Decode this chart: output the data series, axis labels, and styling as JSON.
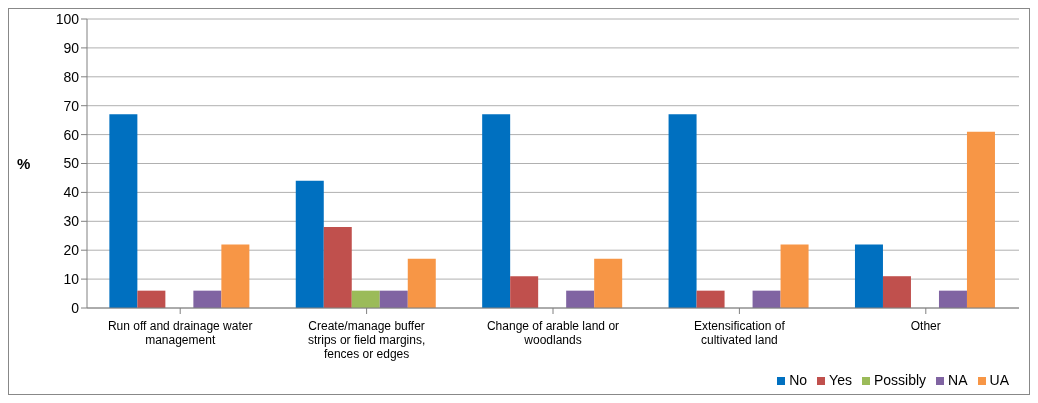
{
  "chart_data": {
    "type": "bar",
    "ylabel": "%",
    "categories": [
      "Run off and drainage water management",
      "Create/manage buffer strips or field margins, fences or edges",
      "Change of arable land or woodlands",
      "Extensification of cultivated land",
      "Other"
    ],
    "series": [
      {
        "name": "No",
        "color": "#0070c0",
        "values": [
          67,
          44,
          67,
          67,
          22
        ]
      },
      {
        "name": "Yes",
        "color": "#c0504d",
        "values": [
          6,
          28,
          11,
          6,
          11
        ]
      },
      {
        "name": "Possibly",
        "color": "#9bbb59",
        "values": [
          0,
          6,
          0,
          0,
          0
        ]
      },
      {
        "name": "NA",
        "color": "#8064a2",
        "values": [
          6,
          6,
          6,
          6,
          6
        ]
      },
      {
        "name": "UA",
        "color": "#f79646",
        "values": [
          22,
          17,
          17,
          22,
          61
        ]
      }
    ],
    "ylim": [
      0,
      100
    ],
    "yticks": [
      0,
      10,
      20,
      30,
      40,
      50,
      60,
      70,
      80,
      90,
      100
    ],
    "grid": "y",
    "legend": "bottom right"
  }
}
